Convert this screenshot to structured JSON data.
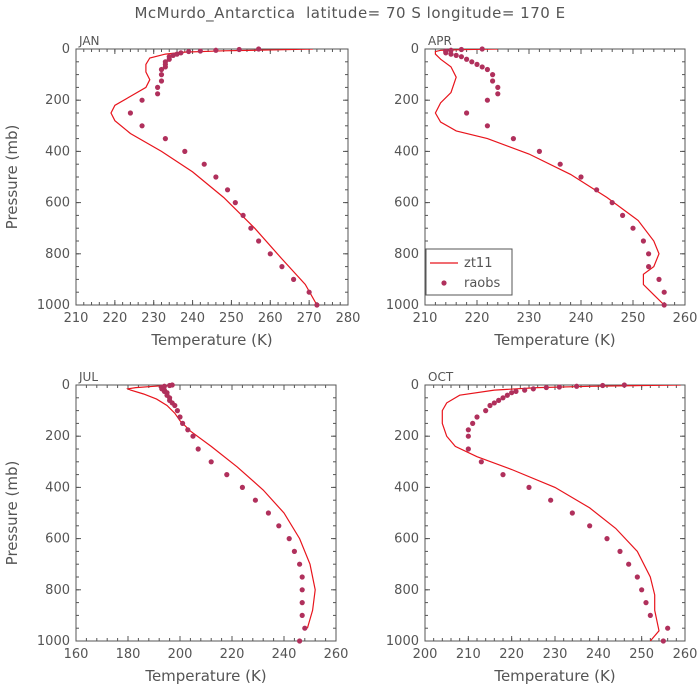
{
  "title": "McMurdo_Antarctica  latitude= 70 S longitude= 170 E",
  "colors": {
    "model": "#e8141c",
    "obs": "#b0305c",
    "axis": "#555555"
  },
  "legend": {
    "model_label": "zt11",
    "obs_label": "raobs"
  },
  "chart_data": [
    {
      "type": "line",
      "panel": "JAN",
      "xlabel": "Temperature (K)",
      "ylabel": "Pressure (mb)",
      "xlim": [
        210,
        280
      ],
      "xticks": [
        210,
        220,
        230,
        240,
        250,
        260,
        270,
        280
      ],
      "ylim": [
        1000,
        0
      ],
      "yticks": [
        0,
        200,
        400,
        600,
        800,
        1000
      ],
      "series": [
        {
          "name": "zt11",
          "style": "line",
          "x": [
            271,
            262,
            248,
            238,
            233,
            229,
            228,
            228,
            229,
            228,
            224,
            220,
            219,
            220,
            224,
            232,
            240,
            248,
            256,
            263,
            269,
            272
          ],
          "y": [
            0,
            3,
            7,
            12,
            20,
            35,
            60,
            90,
            120,
            150,
            185,
            220,
            250,
            280,
            330,
            400,
            480,
            580,
            700,
            820,
            920,
            1000
          ]
        },
        {
          "name": "raobs",
          "style": "points",
          "x": [
            257,
            252,
            246,
            242,
            239,
            237,
            236,
            235,
            234,
            234,
            233,
            233,
            233,
            232,
            232,
            232,
            231,
            231,
            227,
            224,
            227,
            233,
            238,
            243,
            246,
            249,
            251,
            253,
            255,
            257,
            260,
            263,
            266,
            270,
            272
          ],
          "y": [
            0,
            2,
            5,
            8,
            10,
            15,
            20,
            25,
            30,
            40,
            50,
            60,
            70,
            80,
            100,
            125,
            150,
            175,
            200,
            250,
            300,
            350,
            400,
            450,
            500,
            550,
            600,
            650,
            700,
            750,
            800,
            850,
            900,
            950,
            1000
          ]
        }
      ]
    },
    {
      "type": "line",
      "panel": "APR",
      "xlabel": "Temperature (K)",
      "ylabel": "",
      "xlim": [
        210,
        260
      ],
      "xticks": [
        210,
        220,
        230,
        240,
        250,
        260
      ],
      "ylim": [
        1000,
        0
      ],
      "yticks": [
        0,
        200,
        400,
        600,
        800,
        1000
      ],
      "legend_position": "bottom-left",
      "series": [
        {
          "name": "zt11",
          "style": "line",
          "x": [
            224,
            218,
            213,
            212,
            212,
            213,
            215,
            216,
            215,
            213,
            212,
            213,
            216,
            222,
            230,
            238,
            245,
            251,
            254,
            255,
            254,
            252,
            252,
            254,
            256
          ],
          "y": [
            0,
            2,
            5,
            10,
            20,
            40,
            70,
            110,
            170,
            210,
            250,
            285,
            320,
            350,
            410,
            490,
            580,
            670,
            750,
            800,
            850,
            880,
            920,
            960,
            1000
          ]
        },
        {
          "name": "raobs",
          "style": "points",
          "x": [
            221,
            217,
            215,
            214,
            214,
            214,
            215,
            216,
            217,
            218,
            219,
            220,
            221,
            222,
            223,
            223,
            224,
            224,
            222,
            218,
            222,
            227,
            232,
            236,
            240,
            243,
            246,
            248,
            250,
            252,
            253,
            253,
            255,
            256,
            256
          ],
          "y": [
            0,
            2,
            5,
            8,
            10,
            15,
            20,
            25,
            30,
            40,
            50,
            60,
            70,
            80,
            100,
            125,
            150,
            175,
            200,
            250,
            300,
            350,
            400,
            450,
            500,
            550,
            600,
            650,
            700,
            750,
            800,
            850,
            900,
            950,
            1000
          ]
        }
      ]
    },
    {
      "type": "line",
      "panel": "JUL",
      "xlabel": "Temperature (K)",
      "ylabel": "Pressure (mb)",
      "xlim": [
        160,
        260
      ],
      "xticks": [
        160,
        180,
        200,
        220,
        240,
        260
      ],
      "ylim": [
        1000,
        0
      ],
      "yticks": [
        0,
        200,
        400,
        600,
        800,
        1000
      ],
      "series": [
        {
          "name": "zt11",
          "style": "line",
          "x": [
            198,
            190,
            183,
            180,
            181,
            186,
            191,
            195,
            198,
            200,
            204,
            212,
            222,
            232,
            240,
            246,
            250,
            252,
            251,
            249
          ],
          "y": [
            0,
            5,
            10,
            15,
            20,
            35,
            55,
            80,
            110,
            140,
            180,
            240,
            320,
            410,
            500,
            600,
            700,
            800,
            880,
            950
          ]
        },
        {
          "name": "raobs",
          "style": "points",
          "x": [
            197,
            196,
            194,
            193,
            193,
            193,
            194,
            194,
            195,
            195,
            196,
            196,
            197,
            198,
            199,
            200,
            201,
            203,
            205,
            207,
            212,
            218,
            224,
            229,
            234,
            238,
            242,
            244,
            246,
            247,
            247,
            247,
            247,
            248,
            246
          ],
          "y": [
            0,
            2,
            5,
            8,
            10,
            15,
            20,
            25,
            30,
            40,
            50,
            60,
            70,
            80,
            100,
            125,
            150,
            175,
            200,
            250,
            300,
            350,
            400,
            450,
            500,
            550,
            600,
            650,
            700,
            750,
            800,
            850,
            900,
            950,
            1000
          ]
        }
      ]
    },
    {
      "type": "line",
      "panel": "OCT",
      "xlabel": "Temperature (K)",
      "ylabel": "",
      "xlim": [
        200,
        260
      ],
      "xticks": [
        200,
        210,
        220,
        230,
        240,
        250,
        260
      ],
      "ylim": [
        1000,
        0
      ],
      "yticks": [
        0,
        200,
        400,
        600,
        800,
        1000
      ],
      "series": [
        {
          "name": "zt11",
          "style": "line",
          "x": [
            259,
            250,
            238,
            226,
            216,
            208,
            205,
            204,
            204,
            205,
            207,
            212,
            220,
            230,
            238,
            244,
            249,
            252,
            253,
            253,
            254,
            252
          ],
          "y": [
            0,
            2,
            5,
            10,
            20,
            40,
            70,
            100,
            150,
            200,
            240,
            280,
            330,
            400,
            480,
            560,
            650,
            750,
            820,
            880,
            960,
            1000
          ]
        },
        {
          "name": "raobs",
          "style": "points",
          "x": [
            246,
            241,
            235,
            231,
            228,
            225,
            223,
            221,
            220,
            219,
            218,
            217,
            216,
            215,
            214,
            212,
            211,
            210,
            210,
            210,
            213,
            218,
            224,
            229,
            234,
            238,
            242,
            245,
            247,
            249,
            250,
            251,
            252,
            256,
            255
          ],
          "y": [
            0,
            2,
            5,
            8,
            10,
            15,
            20,
            25,
            30,
            40,
            50,
            60,
            70,
            80,
            100,
            125,
            150,
            175,
            200,
            250,
            300,
            350,
            400,
            450,
            500,
            550,
            600,
            650,
            700,
            750,
            800,
            850,
            900,
            950,
            1000
          ]
        }
      ]
    }
  ]
}
